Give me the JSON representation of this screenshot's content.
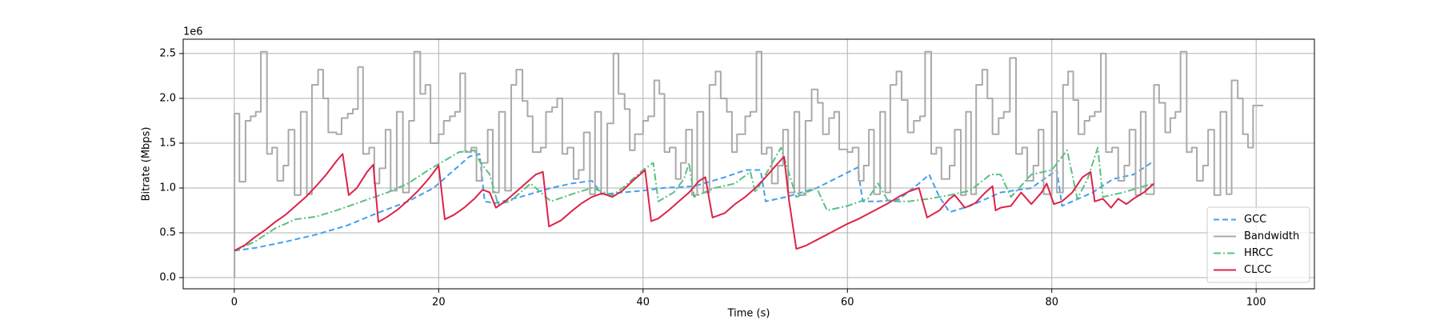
{
  "chart_data": {
    "type": "line",
    "x_label": "Time (s)",
    "y_label": "Bitrate (Mbps)",
    "y_offset_label": "1e6",
    "xlim": [
      -5,
      105.7
    ],
    "xticks": [
      0,
      20,
      40,
      60,
      80,
      100
    ],
    "ylim": [
      -0.125,
      2.66
    ],
    "yticks": [
      {
        "value": 0,
        "label": "0.0"
      },
      {
        "value": 0.5,
        "label": "0.5"
      },
      {
        "value": 1,
        "label": "1.0"
      },
      {
        "value": 1.5,
        "label": "1.5"
      },
      {
        "value": 2,
        "label": "2.0"
      },
      {
        "value": 2.5,
        "label": "2.5"
      }
    ],
    "grid": true,
    "legend": "lower right",
    "series": [
      {
        "name": "GCC",
        "color": "#42a0ee",
        "linestyle": "dashed",
        "drawstyle": "default",
        "x": [
          0,
          2,
          5,
          8,
          11,
          14,
          17,
          19.5,
          21,
          23,
          24,
          24.5,
          25.5,
          28,
          31,
          33,
          35,
          36,
          38,
          40,
          42,
          45,
          48,
          50,
          51.5,
          52,
          54,
          57,
          60.5,
          61,
          61.5,
          63,
          65,
          67,
          68,
          69,
          70,
          72,
          75,
          78,
          80.5,
          81,
          82,
          84,
          86,
          88,
          90
        ],
        "values": [
          0.3,
          0.33,
          0.4,
          0.48,
          0.58,
          0.72,
          0.85,
          1.0,
          1.15,
          1.35,
          1.38,
          0.85,
          0.83,
          0.9,
          1.0,
          1.05,
          1.08,
          0.93,
          0.95,
          0.97,
          1.0,
          1.02,
          1.12,
          1.2,
          1.2,
          0.85,
          0.9,
          1.0,
          1.2,
          1.23,
          0.85,
          0.85,
          0.87,
          1.05,
          1.15,
          0.9,
          0.73,
          0.8,
          0.95,
          1.0,
          1.2,
          0.8,
          0.85,
          0.95,
          1.1,
          1.15,
          1.3
        ]
      },
      {
        "name": "Bandwidth",
        "color": "#aaaaaa",
        "linestyle": "solid",
        "drawstyle": "steps-post",
        "x": [
          0,
          0.02,
          0.5,
          1.1,
          1.6,
          2.1,
          2.6,
          3.2,
          3.7,
          4.2,
          4.8,
          5.3,
          5.9,
          6.5,
          7.1,
          7.6,
          8.2,
          8.7,
          9.2,
          10,
          10.5,
          11.1,
          11.6,
          12.1,
          12.6,
          13.2,
          13.7,
          14.2,
          14.8,
          15.3,
          15.9,
          16.5,
          17.1,
          17.6,
          18.2,
          18.7,
          19.2,
          20,
          20.5,
          21.1,
          21.6,
          22.1,
          22.6,
          23.2,
          23.7,
          24.2,
          24.8,
          25.3,
          25.9,
          26.5,
          27.1,
          27.6,
          28.2,
          28.7,
          29.2,
          30,
          30.5,
          31.1,
          31.6,
          32.1,
          32.6,
          33.2,
          33.7,
          34.2,
          34.8,
          35.3,
          35.9,
          36.5,
          37.1,
          37.6,
          38.2,
          38.7,
          39.2,
          40,
          40.5,
          41.1,
          41.6,
          42.1,
          42.6,
          43.2,
          43.7,
          44.2,
          44.8,
          45.3,
          45.9,
          46.5,
          47.1,
          47.6,
          48.2,
          48.7,
          49.2,
          50,
          50.5,
          51.1,
          51.6,
          52.1,
          52.6,
          53.2,
          53.7,
          54.2,
          54.8,
          55.3,
          55.9,
          56.5,
          57.1,
          57.6,
          58.2,
          58.7,
          59.2,
          60,
          60.5,
          61.1,
          61.6,
          62.1,
          62.6,
          63.2,
          63.7,
          64.2,
          64.8,
          65.3,
          65.9,
          66.5,
          67.1,
          67.6,
          68.2,
          68.7,
          69.2,
          70,
          70.5,
          71.1,
          71.6,
          72.1,
          72.6,
          73.2,
          73.7,
          74.2,
          74.8,
          75.3,
          75.9,
          76.5,
          77.1,
          77.6,
          78.2,
          78.7,
          79.2,
          80,
          80.5,
          81.1,
          81.6,
          82.1,
          82.6,
          83.2,
          83.7,
          84.2,
          84.8,
          85.3,
          85.9,
          86.5,
          87.1,
          87.6,
          88.2,
          88.7,
          89.2,
          90,
          90.5,
          91.1,
          91.6,
          92.1,
          92.6,
          93.2,
          93.7,
          94.2,
          94.8,
          95.3,
          95.9,
          96.5,
          97.1,
          97.6,
          98.2,
          98.7,
          99.2,
          99.7,
          100.7
        ],
        "values": [
          0,
          1.83,
          1.07,
          1.75,
          1.8,
          1.85,
          2.52,
          1.38,
          1.45,
          1.08,
          1.25,
          1.65,
          0.92,
          1.85,
          0.93,
          2.15,
          2.32,
          2.0,
          1.62,
          1.6,
          1.78,
          1.83,
          1.88,
          2.35,
          1.38,
          1.45,
          1.05,
          1.22,
          1.65,
          0.97,
          1.85,
          0.95,
          1.75,
          2.52,
          2.05,
          2.15,
          1.5,
          1.6,
          1.75,
          1.8,
          1.85,
          2.28,
          1.4,
          1.45,
          1.08,
          1.28,
          1.65,
          0.95,
          1.85,
          0.97,
          2.15,
          2.32,
          1.97,
          1.8,
          1.4,
          1.45,
          1.85,
          1.9,
          2.0,
          1.38,
          1.45,
          1.1,
          1.2,
          1.62,
          0.93,
          1.85,
          0.93,
          1.72,
          2.5,
          2.05,
          1.88,
          1.42,
          1.6,
          1.75,
          1.8,
          2.2,
          2.05,
          1.4,
          1.45,
          1.1,
          1.28,
          1.65,
          0.92,
          1.85,
          0.95,
          2.15,
          2.3,
          2.0,
          1.85,
          1.4,
          1.6,
          1.8,
          1.85,
          2.52,
          1.38,
          1.45,
          1.05,
          1.25,
          1.65,
          0.95,
          1.85,
          0.92,
          1.75,
          2.1,
          1.95,
          1.6,
          1.78,
          1.85,
          1.43,
          1.4,
          1.45,
          1.08,
          1.25,
          1.65,
          0.93,
          1.85,
          0.95,
          2.15,
          2.3,
          1.98,
          1.62,
          1.75,
          1.8,
          2.52,
          1.38,
          1.45,
          1.1,
          1.25,
          1.65,
          0.92,
          1.85,
          0.93,
          2.15,
          2.32,
          2.0,
          1.6,
          1.78,
          1.85,
          2.45,
          1.38,
          1.45,
          1.08,
          1.25,
          1.65,
          0.93,
          1.85,
          0.95,
          2.15,
          2.3,
          1.98,
          1.6,
          1.75,
          1.8,
          1.85,
          2.5,
          1.4,
          1.45,
          1.08,
          1.25,
          1.65,
          0.92,
          1.85,
          0.93,
          2.15,
          1.95,
          1.62,
          1.78,
          1.85,
          2.52,
          1.4,
          1.45,
          1.08,
          1.25,
          1.65,
          0.92,
          1.85,
          0.93,
          2.2,
          2.0,
          1.6,
          1.45,
          1.92,
          1.92
        ]
      },
      {
        "name": "HRCC",
        "color": "#5cbf84",
        "linestyle": "dashdot",
        "drawstyle": "default",
        "x": [
          0,
          2,
          4,
          6,
          8,
          10,
          13,
          15,
          17,
          19,
          20.5,
          22,
          23.5,
          24,
          25,
          25.8,
          27,
          29,
          31,
          33,
          35,
          37,
          38,
          40,
          41,
          41.5,
          43,
          44,
          44.5,
          45,
          47,
          49,
          50.5,
          51,
          52.5,
          53.5,
          55,
          57,
          58,
          60,
          62,
          63,
          64,
          66,
          68,
          70,
          72,
          74,
          75,
          76,
          78,
          80,
          81.5,
          82.5,
          83.5,
          84.5,
          85,
          87,
          89,
          90
        ],
        "values": [
          0.3,
          0.4,
          0.55,
          0.65,
          0.68,
          0.75,
          0.87,
          0.95,
          1.05,
          1.2,
          1.3,
          1.4,
          1.42,
          1.3,
          1.15,
          0.82,
          0.85,
          1.05,
          0.85,
          0.93,
          1.0,
          0.92,
          1.0,
          1.2,
          1.28,
          0.85,
          0.95,
          1.1,
          1.28,
          0.9,
          1.0,
          1.05,
          1.18,
          0.95,
          1.25,
          1.45,
          0.9,
          1.0,
          0.75,
          0.8,
          0.88,
          1.05,
          0.85,
          0.85,
          0.88,
          0.92,
          0.97,
          1.15,
          1.15,
          0.9,
          1.15,
          1.2,
          1.42,
          0.88,
          1.1,
          1.45,
          0.9,
          0.95,
          1.02,
          1.05
        ]
      },
      {
        "name": "CLCC",
        "color": "#dc2448",
        "linestyle": "solid",
        "drawstyle": "default",
        "x": [
          0,
          1,
          2,
          3,
          4,
          5,
          6,
          7,
          8,
          9,
          10,
          10.6,
          11.2,
          12,
          13,
          13.6,
          14.1,
          15,
          16,
          17,
          18,
          19,
          20,
          20.6,
          21.5,
          22.5,
          23.5,
          24.3,
          25,
          25.6,
          26.5,
          27.5,
          28.5,
          29.5,
          30.2,
          30.8,
          32,
          33,
          34,
          35,
          36,
          37,
          38,
          39,
          40.2,
          40.8,
          41.5,
          42.5,
          43.5,
          44.5,
          45.5,
          46.1,
          46.8,
          48,
          49,
          50,
          51,
          52,
          53,
          53.8,
          54.3,
          55,
          56,
          57,
          58,
          59,
          60,
          61,
          62,
          63,
          64,
          65,
          66,
          67,
          67.8,
          69,
          70,
          70.5,
          71.5,
          72.5,
          73.5,
          74.2,
          74.5,
          75,
          76,
          77,
          78,
          79,
          79.5,
          80.2,
          81,
          82,
          83,
          83.8,
          84.2,
          85,
          85.8,
          86.5,
          87.3,
          88,
          89,
          90
        ],
        "values": [
          0.3,
          0.36,
          0.45,
          0.53,
          0.62,
          0.7,
          0.8,
          0.9,
          1.02,
          1.15,
          1.3,
          1.38,
          0.92,
          1.0,
          1.18,
          1.26,
          0.62,
          0.68,
          0.76,
          0.86,
          0.97,
          1.1,
          1.25,
          0.65,
          0.7,
          0.78,
          0.88,
          0.98,
          0.95,
          0.78,
          0.85,
          0.95,
          1.05,
          1.15,
          1.18,
          0.57,
          0.64,
          0.74,
          0.83,
          0.9,
          0.94,
          0.9,
          0.97,
          1.08,
          1.2,
          0.63,
          0.66,
          0.75,
          0.85,
          0.95,
          1.08,
          1.12,
          0.67,
          0.72,
          0.82,
          0.9,
          1.0,
          1.12,
          1.25,
          1.35,
          0.85,
          0.32,
          0.36,
          0.42,
          0.48,
          0.54,
          0.6,
          0.65,
          0.71,
          0.77,
          0.83,
          0.9,
          0.96,
          1.0,
          0.67,
          0.75,
          0.88,
          0.92,
          0.78,
          0.83,
          0.95,
          1.02,
          0.75,
          0.78,
          0.8,
          0.95,
          0.82,
          0.95,
          1.05,
          0.82,
          0.85,
          0.95,
          1.12,
          1.18,
          0.85,
          0.88,
          0.78,
          0.88,
          0.82,
          0.88,
          0.95,
          1.05
        ]
      }
    ]
  }
}
